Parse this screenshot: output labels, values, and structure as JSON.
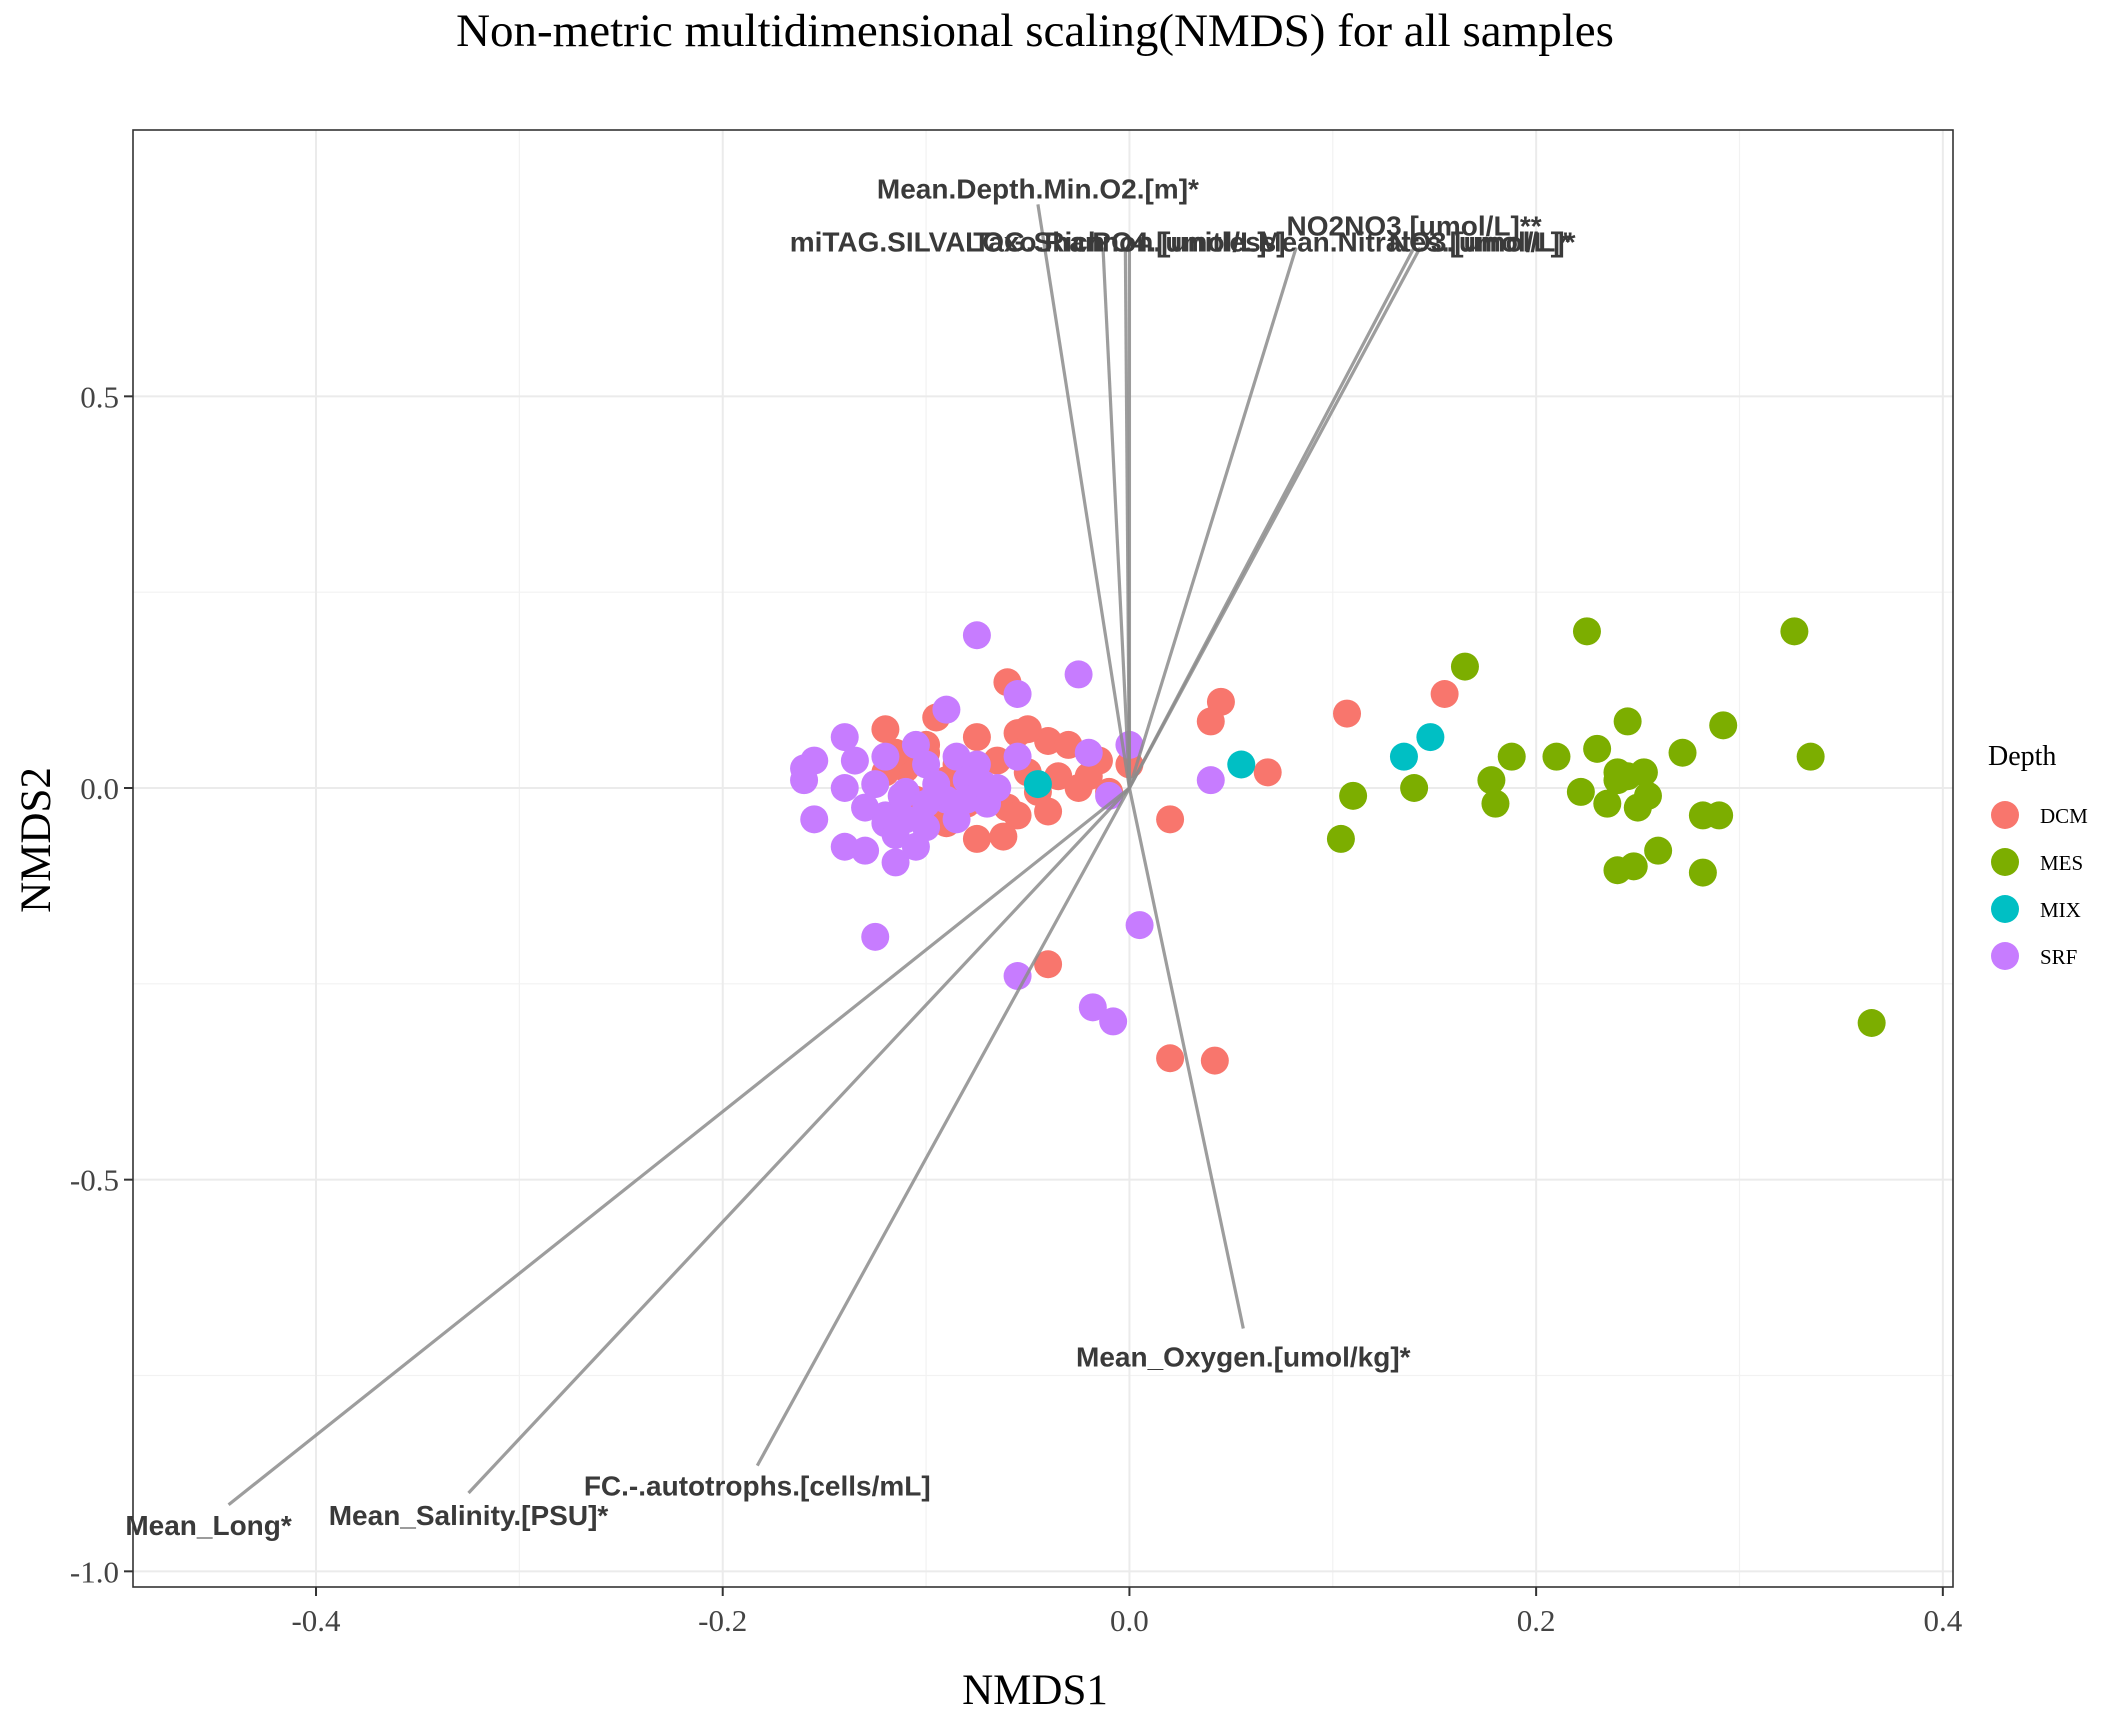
{
  "chart_data": {
    "type": "scatter",
    "title": "Non-metric multidimensional scaling(NMDS) for all samples",
    "xlabel": "NMDS1",
    "ylabel": "NMDS2",
    "xlim": [
      -0.49,
      0.405
    ],
    "ylim": [
      -1.02,
      0.84
    ],
    "xticks": [
      {
        "v": -0.4,
        "label": "-0.4"
      },
      {
        "v": -0.2,
        "label": "-0.2"
      },
      {
        "v": 0.0,
        "label": "0.0"
      },
      {
        "v": 0.2,
        "label": "0.2"
      },
      {
        "v": 0.4,
        "label": "0.4"
      }
    ],
    "yticks": [
      {
        "v": 0.5,
        "label": "0.5"
      },
      {
        "v": 0.0,
        "label": "0.0"
      },
      {
        "v": -0.5,
        "label": "-0.5"
      },
      {
        "v": -1.0,
        "label": "-1.0"
      }
    ],
    "grid": true,
    "legend": {
      "title": "Depth",
      "position": "right"
    },
    "series": [
      {
        "name": "DCM",
        "color": "#F8766D",
        "points": [
          [
            -0.06,
            0.135
          ],
          [
            -0.12,
            0.075
          ],
          [
            -0.095,
            0.09
          ],
          [
            -0.075,
            0.065
          ],
          [
            -0.1,
            0.045
          ],
          [
            -0.055,
            0.07
          ],
          [
            -0.04,
            0.06
          ],
          [
            -0.03,
            0.055
          ],
          [
            -0.015,
            0.035
          ],
          [
            0.0,
            0.03
          ],
          [
            -0.11,
            0.025
          ],
          [
            -0.085,
            0.03
          ],
          [
            -0.065,
            0.035
          ],
          [
            -0.05,
            0.02
          ],
          [
            -0.035,
            0.015
          ],
          [
            -0.09,
            0.01
          ],
          [
            -0.07,
            0.0
          ],
          [
            -0.045,
            -0.005
          ],
          [
            -0.025,
            0.0
          ],
          [
            -0.01,
            -0.005
          ],
          [
            -0.105,
            -0.015
          ],
          [
            -0.08,
            -0.02
          ],
          [
            -0.06,
            -0.025
          ],
          [
            -0.04,
            -0.03
          ],
          [
            -0.055,
            -0.035
          ],
          [
            -0.09,
            -0.045
          ],
          [
            -0.075,
            -0.065
          ],
          [
            -0.062,
            -0.062
          ],
          [
            -0.02,
            0.015
          ],
          [
            -0.115,
            0.045
          ],
          [
            -0.1,
            0.055
          ],
          [
            -0.085,
            0.015
          ],
          [
            -0.095,
            -0.03
          ],
          [
            -0.05,
            0.075
          ],
          [
            0.045,
            0.11
          ],
          [
            0.04,
            0.085
          ],
          [
            0.068,
            0.02
          ],
          [
            0.107,
            0.095
          ],
          [
            0.155,
            0.12
          ],
          [
            0.02,
            -0.04
          ],
          [
            -0.04,
            -0.225
          ],
          [
            0.02,
            -0.345
          ],
          [
            0.042,
            -0.348
          ],
          [
            -0.12,
            0.02
          ]
        ]
      },
      {
        "name": "MES",
        "color": "#7CAE00",
        "points": [
          [
            0.225,
            0.2
          ],
          [
            0.327,
            0.2
          ],
          [
            0.165,
            0.155
          ],
          [
            0.245,
            0.085
          ],
          [
            0.292,
            0.08
          ],
          [
            0.272,
            0.045
          ],
          [
            0.23,
            0.05
          ],
          [
            0.188,
            0.04
          ],
          [
            0.21,
            0.04
          ],
          [
            0.335,
            0.04
          ],
          [
            0.24,
            0.02
          ],
          [
            0.253,
            0.02
          ],
          [
            0.178,
            0.01
          ],
          [
            0.14,
            0.0
          ],
          [
            0.222,
            -0.005
          ],
          [
            0.255,
            -0.01
          ],
          [
            0.11,
            -0.01
          ],
          [
            0.18,
            -0.02
          ],
          [
            0.235,
            -0.02
          ],
          [
            0.25,
            -0.025
          ],
          [
            0.282,
            -0.035
          ],
          [
            0.29,
            -0.035
          ],
          [
            0.104,
            -0.065
          ],
          [
            0.26,
            -0.08
          ],
          [
            0.24,
            -0.105
          ],
          [
            0.248,
            -0.1
          ],
          [
            0.282,
            -0.108
          ],
          [
            0.365,
            -0.3
          ],
          [
            0.245,
            0.015
          ],
          [
            0.24,
            0.01
          ]
        ]
      },
      {
        "name": "MIX",
        "color": "#00BFC4",
        "points": [
          [
            -0.045,
            0.005
          ],
          [
            0.055,
            0.03
          ],
          [
            0.135,
            0.04
          ],
          [
            0.148,
            0.065
          ]
        ]
      },
      {
        "name": "SRF",
        "color": "#C77CFF",
        "points": [
          [
            -0.075,
            0.195
          ],
          [
            -0.055,
            0.12
          ],
          [
            -0.025,
            0.145
          ],
          [
            -0.09,
            0.1
          ],
          [
            -0.14,
            0.065
          ],
          [
            -0.105,
            0.055
          ],
          [
            0.0,
            0.055
          ],
          [
            -0.155,
            0.035
          ],
          [
            -0.16,
            0.025
          ],
          [
            -0.135,
            0.035
          ],
          [
            -0.12,
            0.04
          ],
          [
            -0.1,
            0.03
          ],
          [
            -0.085,
            0.04
          ],
          [
            -0.075,
            0.03
          ],
          [
            -0.055,
            0.04
          ],
          [
            -0.02,
            0.045
          ],
          [
            -0.16,
            0.01
          ],
          [
            -0.14,
            0.0
          ],
          [
            -0.125,
            0.005
          ],
          [
            -0.11,
            -0.005
          ],
          [
            -0.095,
            0.005
          ],
          [
            -0.08,
            0.01
          ],
          [
            -0.065,
            0.0
          ],
          [
            -0.09,
            -0.015
          ],
          [
            -0.1,
            -0.02
          ],
          [
            -0.13,
            -0.025
          ],
          [
            -0.12,
            -0.035
          ],
          [
            -0.11,
            -0.04
          ],
          [
            -0.085,
            -0.04
          ],
          [
            -0.07,
            -0.02
          ],
          [
            -0.155,
            -0.04
          ],
          [
            -0.12,
            -0.045
          ],
          [
            -0.115,
            -0.06
          ],
          [
            -0.1,
            -0.05
          ],
          [
            -0.14,
            -0.075
          ],
          [
            -0.13,
            -0.08
          ],
          [
            -0.115,
            -0.095
          ],
          [
            -0.105,
            -0.075
          ],
          [
            -0.08,
            -0.015
          ],
          [
            -0.095,
            -0.005
          ],
          [
            -0.01,
            -0.01
          ],
          [
            0.04,
            0.01
          ],
          [
            -0.125,
            -0.19
          ],
          [
            0.005,
            -0.175
          ],
          [
            -0.055,
            -0.24
          ],
          [
            -0.018,
            -0.28
          ],
          [
            -0.008,
            -0.298
          ],
          [
            -0.112,
            -0.01
          ],
          [
            -0.072,
            0.005
          ]
        ]
      }
    ],
    "vectors": [
      {
        "label": "Mean.Depth.Min.O2.[m]*",
        "end": [
          -0.045,
          0.745
        ],
        "anchor": "middle",
        "ldx": 0,
        "ldy": -6
      },
      {
        "label": "miTAG.SILVA.Taxo.Rich",
        "end": [
          -0.013,
          0.69
        ],
        "anchor": "end",
        "ldx": 2,
        "ldy": 4
      },
      {
        "label": "LOG.Shannon.[unitless]",
        "end": [
          -0.002,
          0.69
        ],
        "anchor": "middle",
        "ldx": 0,
        "ldy": 4
      },
      {
        "label": "PO4.[umol/L]",
        "end": [
          0.0,
          0.69
        ],
        "anchor": "middle",
        "ldx": 50,
        "ldy": 4
      },
      {
        "label": "Mean.Nitrates.[umol/L]*",
        "end": [
          0.082,
          0.69
        ],
        "anchor": "start",
        "ldx": -38,
        "ldy": 4
      },
      {
        "label": "NO2NO3.[umol/L]**",
        "end": [
          0.14,
          0.69
        ],
        "anchor": "middle",
        "ldx": 0,
        "ldy": -12
      },
      {
        "label": "NO3.[umol/L]*",
        "end": [
          0.143,
          0.69
        ],
        "anchor": "middle",
        "ldx": 62,
        "ldy": 4
      },
      {
        "label": "Mean_Oxygen.[umol/kg]*",
        "end": [
          0.056,
          -0.69
        ],
        "anchor": "middle",
        "ldx": 0,
        "ldy": 38
      },
      {
        "label": "FC.-.autotrophs.[cells/mL]",
        "end": [
          -0.183,
          -0.865
        ],
        "anchor": "middle",
        "ldx": 0,
        "ldy": 30
      },
      {
        "label": "Mean_Salinity.[PSU]*",
        "end": [
          -0.325,
          -0.9
        ],
        "anchor": "middle",
        "ldx": 0,
        "ldy": 32
      },
      {
        "label": "Mean_Long*",
        "end": [
          -0.443,
          -0.915
        ],
        "anchor": "middle",
        "ldx": -20,
        "ldy": 30
      }
    ]
  }
}
